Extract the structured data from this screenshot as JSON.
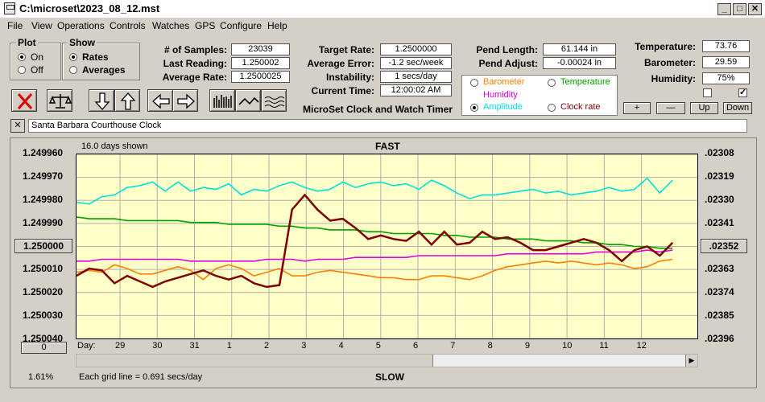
{
  "window": {
    "title": "C:\\microset\\2023_08_12.mst",
    "min": "_",
    "max": "□",
    "close": "✕"
  },
  "menu": [
    "File",
    "View",
    "Operations",
    "Controls",
    "Watches",
    "GPS",
    "Configure",
    "Help"
  ],
  "plot_group": {
    "label": "Plot",
    "on": "On",
    "off": "Off",
    "selected": "On"
  },
  "show_group": {
    "label": "Show",
    "rates": "Rates",
    "averages": "Averages",
    "selected": "Rates"
  },
  "stats": {
    "samples_label": "# of Samples:",
    "samples": "23039",
    "last_label": "Last Reading:",
    "last": "1.250002",
    "avg_label": "Average Rate:",
    "avg": "1.2500025",
    "target_label": "Target Rate:",
    "target": "1.2500000",
    "err_label": "Average Error:",
    "err": "-1.2 sec/week",
    "inst_label": "Instability:",
    "inst": "1 secs/day",
    "time_label": "Current Time:",
    "time": "12:00:02 AM",
    "pend_len_label": "Pend Length:",
    "pend_len": "61.144 in",
    "pend_adj_label": "Pend Adjust:",
    "pend_adj": "-0.00024 in",
    "temp_label": "Temperature:",
    "temp": "73.76",
    "baro_label": "Barometer:",
    "baro": "29.59",
    "hum_label": "Humidity:",
    "hum": "75%"
  },
  "app_title": "MicroSet Clock and Watch Timer",
  "legend": {
    "barometer": "Barometer",
    "temperature": "Temperature",
    "humidity": "Humidity",
    "amplitude": "Amplitude",
    "clock_rate": "Clock rate",
    "selected": "Amplitude"
  },
  "colors": {
    "barometer": "#ff8000",
    "temperature": "#00a000",
    "humidity": "#e000e0",
    "amplitude": "#00e0e0",
    "clock_rate": "#800000"
  },
  "right_buttons": {
    "plus": "+",
    "minus": "—",
    "up": "Up",
    "down": "Down"
  },
  "clock_name": "Santa Barbara Courthouse Clock",
  "chart": {
    "days_shown": "16.0 days shown",
    "fast": "FAST",
    "slow": "SLOW",
    "grid_note": "Each grid line = 0.691 secs/day",
    "pct": "1.61%",
    "center_btn": "1.250000",
    "zero_btn": "0",
    "right_btn": ".02352",
    "day_label": "Day:"
  },
  "chart_data": {
    "type": "line",
    "y_left": [
      "1.249960",
      "1.249970",
      "1.249980",
      "1.249990",
      "1.250000",
      "1.250010",
      "1.250020",
      "1.250030",
      "1.250040"
    ],
    "y_right": [
      ".02308",
      ".02319",
      ".02330",
      ".02341",
      ".02352",
      ".02363",
      ".02374",
      ".02385",
      ".02396"
    ],
    "x_ticks": [
      "29",
      "30",
      "31",
      "1",
      "2",
      "3",
      "4",
      "5",
      "6",
      "7",
      "8",
      "9",
      "10",
      "11",
      "12"
    ],
    "x_tick_pos": [
      0.07,
      0.13,
      0.19,
      0.25,
      0.31,
      0.37,
      0.43,
      0.49,
      0.55,
      0.61,
      0.67,
      0.73,
      0.79,
      0.85,
      0.91
    ],
    "series": [
      {
        "name": "Amplitude",
        "color": "#00e0e0",
        "values": [
          0.26,
          0.27,
          0.23,
          0.22,
          0.18,
          0.17,
          0.15,
          0.2,
          0.15,
          0.2,
          0.18,
          0.19,
          0.16,
          0.22,
          0.19,
          0.2,
          0.17,
          0.15,
          0.18,
          0.2,
          0.19,
          0.15,
          0.18,
          0.16,
          0.15,
          0.17,
          0.16,
          0.19,
          0.14,
          0.17,
          0.21,
          0.24,
          0.22,
          0.22,
          0.21,
          0.2,
          0.19,
          0.21,
          0.2,
          0.22,
          0.21,
          0.2,
          0.18,
          0.2,
          0.19,
          0.13,
          0.21,
          0.14
        ]
      },
      {
        "name": "Temperature",
        "color": "#00a000",
        "values": [
          0.34,
          0.35,
          0.35,
          0.35,
          0.36,
          0.36,
          0.36,
          0.36,
          0.36,
          0.37,
          0.37,
          0.37,
          0.38,
          0.38,
          0.38,
          0.38,
          0.39,
          0.39,
          0.4,
          0.4,
          0.41,
          0.41,
          0.41,
          0.42,
          0.42,
          0.43,
          0.43,
          0.43,
          0.43,
          0.44,
          0.44,
          0.45,
          0.45,
          0.45,
          0.46,
          0.46,
          0.46,
          0.47,
          0.47,
          0.47,
          0.48,
          0.48,
          0.49,
          0.49,
          0.5,
          0.5,
          0.51,
          0.51
        ]
      },
      {
        "name": "Humidity",
        "color": "#e000e0",
        "values": [
          0.58,
          0.58,
          0.57,
          0.57,
          0.57,
          0.57,
          0.57,
          0.57,
          0.57,
          0.58,
          0.58,
          0.58,
          0.58,
          0.58,
          0.58,
          0.57,
          0.57,
          0.57,
          0.58,
          0.57,
          0.57,
          0.57,
          0.56,
          0.56,
          0.56,
          0.56,
          0.56,
          0.55,
          0.55,
          0.55,
          0.55,
          0.55,
          0.55,
          0.55,
          0.54,
          0.54,
          0.54,
          0.54,
          0.54,
          0.54,
          0.54,
          0.53,
          0.53,
          0.53,
          0.53,
          0.52,
          0.53,
          0.52
        ]
      },
      {
        "name": "Barometer",
        "color": "#ff8000",
        "values": [
          0.64,
          0.63,
          0.64,
          0.6,
          0.62,
          0.65,
          0.65,
          0.63,
          0.61,
          0.63,
          0.68,
          0.62,
          0.6,
          0.62,
          0.66,
          0.64,
          0.62,
          0.66,
          0.66,
          0.64,
          0.63,
          0.64,
          0.65,
          0.66,
          0.67,
          0.67,
          0.68,
          0.68,
          0.66,
          0.66,
          0.67,
          0.68,
          0.66,
          0.63,
          0.61,
          0.6,
          0.59,
          0.58,
          0.59,
          0.58,
          0.59,
          0.6,
          0.59,
          0.6,
          0.62,
          0.61,
          0.58,
          0.57
        ]
      },
      {
        "name": "Clock rate",
        "color": "#800000",
        "values": [
          0.66,
          0.62,
          0.63,
          0.7,
          0.66,
          0.69,
          0.72,
          0.69,
          0.67,
          0.65,
          0.63,
          0.66,
          0.68,
          0.66,
          0.7,
          0.72,
          0.71,
          0.3,
          0.22,
          0.3,
          0.36,
          0.35,
          0.4,
          0.46,
          0.44,
          0.46,
          0.47,
          0.42,
          0.49,
          0.42,
          0.49,
          0.48,
          0.42,
          0.46,
          0.45,
          0.48,
          0.52,
          0.52,
          0.5,
          0.48,
          0.46,
          0.48,
          0.52,
          0.58,
          0.52,
          0.5,
          0.55,
          0.48
        ]
      }
    ]
  }
}
